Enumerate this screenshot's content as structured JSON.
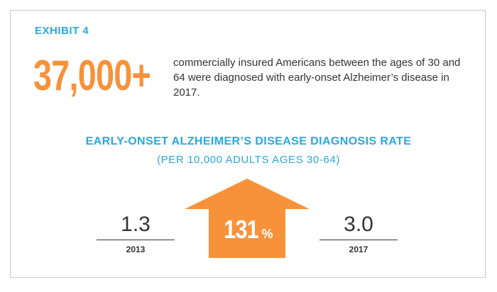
{
  "header": {
    "exhibit_label": "EXHIBIT 4"
  },
  "headline": {
    "number": "37,000+",
    "description": "commercially insured Americans between the ages of 30 and 64 were diagnosed with early-onset Alzheimer’s disease in 2017."
  },
  "chart": {
    "title": "EARLY-ONSET ALZHEIMER’S DISEASE DIAGNOSIS RATE",
    "subtitle": "(PER 10,000 ADULTS AGES 30-64)",
    "change_value": "131",
    "change_unit": "%"
  },
  "chart_data": {
    "type": "table",
    "title": "EARLY-ONSET ALZHEIMER’S DISEASE DIAGNOSIS RATE",
    "subtitle": "(PER 10,000 ADULTS AGES 30-64)",
    "categories": [
      "2013",
      "2017"
    ],
    "values": [
      1.3,
      3.0
    ],
    "value_labels": [
      "1.3",
      "3.0"
    ],
    "change_percent": 131
  },
  "colors": {
    "accent_blue": "#29a8df",
    "accent_orange": "#f7923b",
    "text": "#333333",
    "border": "#c9c9c9"
  }
}
